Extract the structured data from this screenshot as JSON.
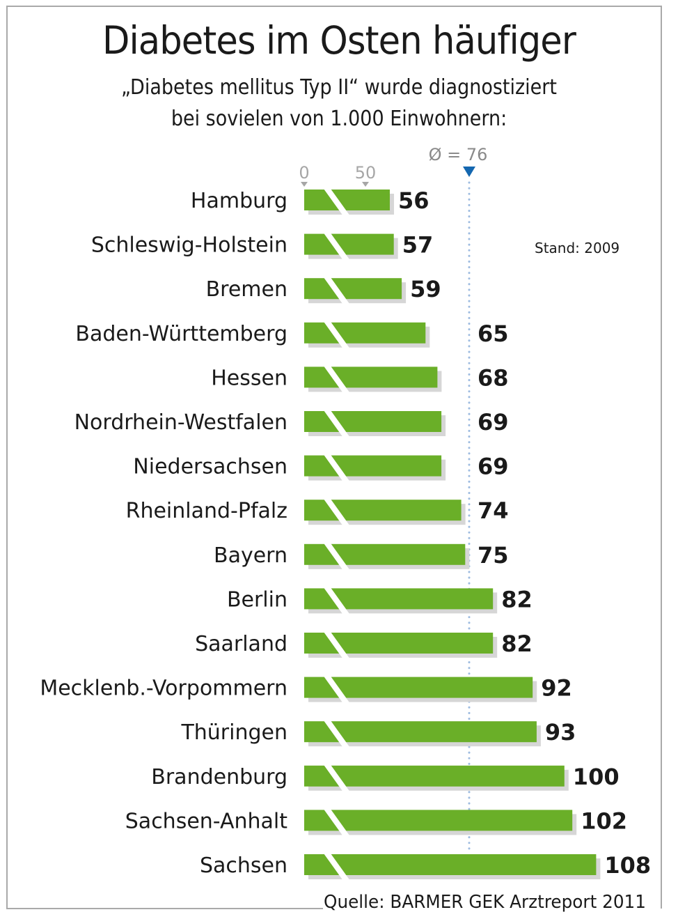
{
  "chart_data": {
    "type": "bar",
    "orientation": "horizontal",
    "title": "Diabetes im Osten häufiger",
    "subtitle_line1": "„Diabetes mellitus Typ II“ wurde diagnostiziert",
    "subtitle_line2": "bei sovielen von 1.000 Einwohnern:",
    "categories": [
      "Hamburg",
      "Schleswig-Holstein",
      "Bremen",
      "Baden-Württemberg",
      "Hessen",
      "Nordrhein-Westfalen",
      "Niedersachsen",
      "Rheinland-Pfalz",
      "Bayern",
      "Berlin",
      "Saarland",
      "Mecklenb.-Vorpommern",
      "Thüringen",
      "Brandenburg",
      "Sachsen-Anhalt",
      "Sachsen"
    ],
    "values": [
      56,
      57,
      59,
      65,
      68,
      69,
      69,
      74,
      75,
      82,
      82,
      92,
      93,
      100,
      102,
      108
    ],
    "value_labels": [
      "56",
      "57",
      "59",
      "65",
      "68",
      "69",
      "69",
      "74",
      "75",
      "82",
      "82",
      "92",
      "93",
      "100",
      "102",
      "108"
    ],
    "axis_ticks": [
      "0",
      "50"
    ],
    "axis_tick_values": [
      0,
      50
    ],
    "axis_break": true,
    "average": {
      "value": 76,
      "label": "Ø = 76"
    },
    "note": "Stand: 2009",
    "source": "Quelle: BARMER GEK Arztreport 2011",
    "xlabel": "",
    "ylabel": "",
    "grid": false,
    "colors": {
      "bar": "#6aaf28",
      "shadow": "#d6d6d6",
      "average_line": "#9dbbe0",
      "average_marker": "#1467b0",
      "tick": "#a6a6a6"
    }
  }
}
